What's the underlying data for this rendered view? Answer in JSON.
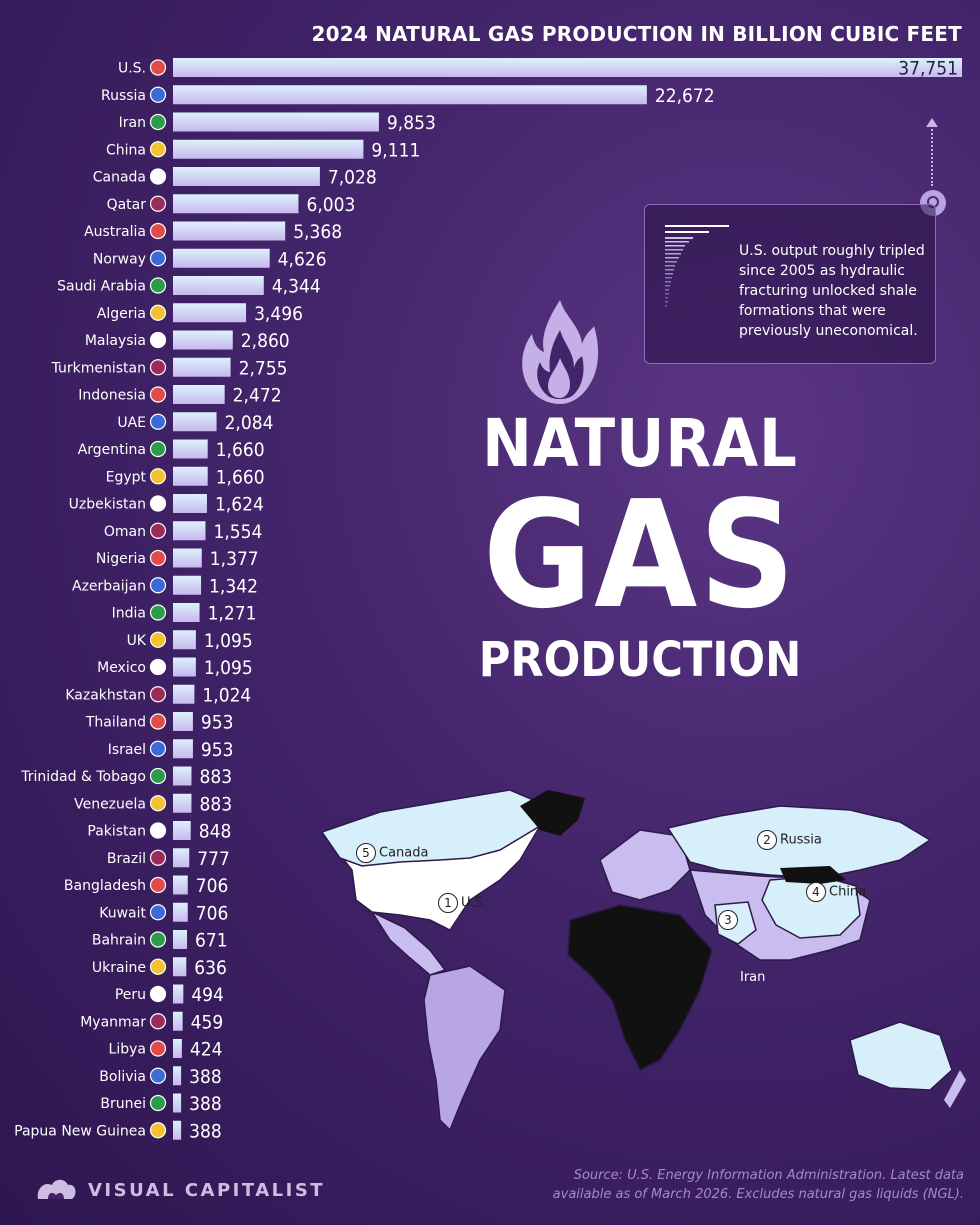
{
  "header": {
    "subtitle": "2024 NATURAL GAS PRODUCTION IN BILLION CUBIC FEET"
  },
  "title": {
    "line1": "NATURAL",
    "line2": "GAS",
    "line3": "PRODUCTION"
  },
  "callout": {
    "text": "U.S. output roughly tripled since 2005 as hydraulic fracturing unlocked shale formations that were previously uneconomical."
  },
  "map": {
    "labels": [
      {
        "rank": "1",
        "name": "U.S."
      },
      {
        "rank": "2",
        "name": "Russia"
      },
      {
        "rank": "3",
        "name": "Iran"
      },
      {
        "rank": "4",
        "name": "China"
      },
      {
        "rank": "5",
        "name": "Canada"
      }
    ]
  },
  "footer": {
    "brand": "VISUAL CAPITALIST",
    "source": "Source: U.S. Energy Information Administration. Latest data available as of March 2026. Excludes natural gas liquids (NGL)."
  },
  "colors": {
    "bar_light": "#d7eefb",
    "bar_dark": "#c9bdf0",
    "background": "#42246a"
  },
  "chart_data": {
    "type": "bar",
    "orientation": "horizontal",
    "unit": "billion cubic feet",
    "categories": [
      "U.S.",
      "Russia",
      "Iran",
      "China",
      "Canada",
      "Qatar",
      "Australia",
      "Norway",
      "Saudi Arabia",
      "Algeria",
      "Malaysia",
      "Turkmenistan",
      "Indonesia",
      "UAE",
      "Argentina",
      "Egypt",
      "Uzbekistan",
      "Oman",
      "Nigeria",
      "Azerbaijan",
      "India",
      "UK",
      "Mexico",
      "Kazakhstan",
      "Thailand",
      "Israel",
      "Trinidad & Tobago",
      "Venezuela",
      "Pakistan",
      "Brazil",
      "Bangladesh",
      "Kuwait",
      "Bahrain",
      "Ukraine",
      "Peru",
      "Myanmar",
      "Libya",
      "Bolivia",
      "Brunei",
      "Papua New Guinea"
    ],
    "values": [
      37751,
      22672,
      9853,
      9111,
      7028,
      6003,
      5368,
      4626,
      4344,
      3496,
      2860,
      2755,
      2472,
      2084,
      1660,
      1660,
      1624,
      1554,
      1377,
      1342,
      1271,
      1095,
      1095,
      1024,
      953,
      953,
      883,
      883,
      848,
      777,
      706,
      706,
      671,
      636,
      494,
      459,
      424,
      388,
      388,
      388
    ],
    "value_labels": [
      "37,751",
      "22,672",
      "9,853",
      "9,111",
      "7,028",
      "6,003",
      "5,368",
      "4,626",
      "4,344",
      "3,496",
      "2,860",
      "2,755",
      "2,472",
      "2,084",
      "1,660",
      "1,660",
      "1,624",
      "1,554",
      "1,377",
      "1,342",
      "1,271",
      "1,095",
      "1,095",
      "1,024",
      "953",
      "953",
      "883",
      "883",
      "848",
      "777",
      "706",
      "706",
      "671",
      "636",
      "494",
      "459",
      "424",
      "388",
      "388",
      "388"
    ]
  }
}
